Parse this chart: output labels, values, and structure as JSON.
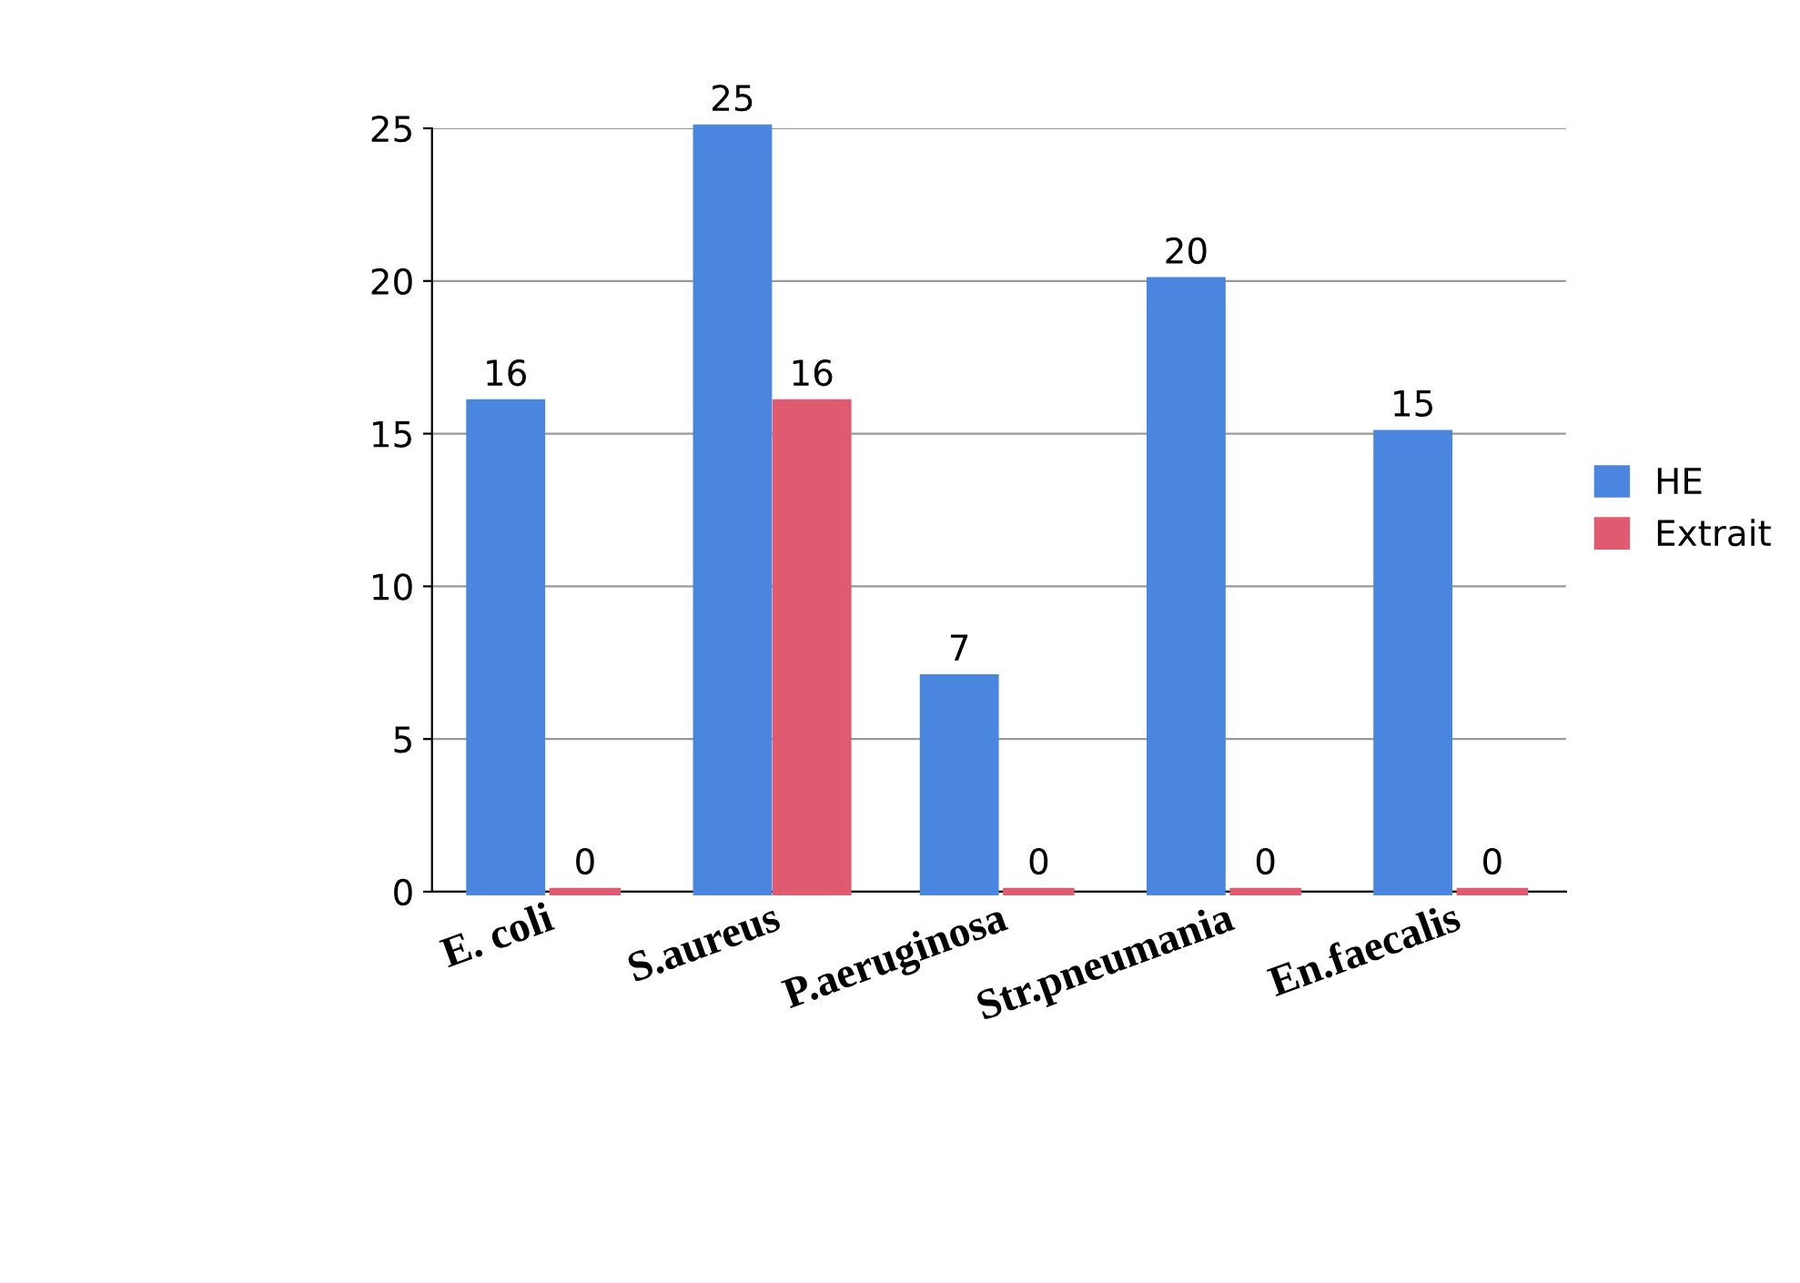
{
  "chart_data": {
    "type": "bar",
    "categories": [
      "E. coli",
      "S.aureus",
      "P.aeruginosa",
      "Str.pneumania",
      "En.faecalis"
    ],
    "series": [
      {
        "name": "HE",
        "color": "#4a86e0",
        "values": [
          16,
          25,
          7,
          20,
          15
        ]
      },
      {
        "name": "Extrait",
        "color": "#e05a70",
        "values": [
          0,
          16,
          0,
          0,
          0
        ]
      }
    ],
    "ylim": [
      0,
      25
    ],
    "yticks": [
      0,
      5,
      10,
      15,
      20,
      25
    ],
    "grid": "y",
    "legend": "right",
    "data_labels": true
  }
}
